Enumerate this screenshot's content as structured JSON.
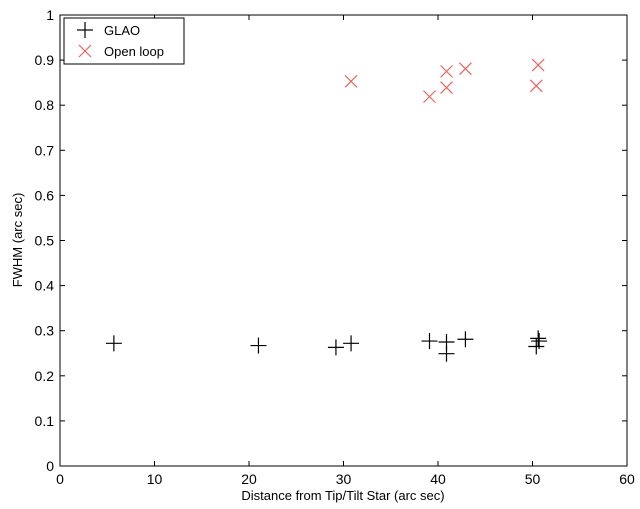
{
  "chart_data": {
    "type": "scatter",
    "title": "",
    "xlabel": "Distance from Tip/Tilt Star (arc sec)",
    "ylabel": "FWHM (arc sec)",
    "xlim": [
      0,
      60
    ],
    "ylim": [
      0,
      1
    ],
    "xticks": [
      "0",
      "10",
      "20",
      "30",
      "40",
      "50",
      "60"
    ],
    "yticks": [
      "0",
      "0.1",
      "0.2",
      "0.3",
      "0.4",
      "0.5",
      "0.6",
      "0.7",
      "0.8",
      "0.9",
      "1"
    ],
    "grid": false,
    "legend_position": "top-left",
    "series": [
      {
        "name": "GLAO",
        "marker": "plus",
        "color": "#000000",
        "points": [
          {
            "x": 5.7,
            "y": 0.272
          },
          {
            "x": 21.0,
            "y": 0.267
          },
          {
            "x": 29.2,
            "y": 0.263
          },
          {
            "x": 30.8,
            "y": 0.272
          },
          {
            "x": 39.1,
            "y": 0.277
          },
          {
            "x": 40.9,
            "y": 0.275
          },
          {
            "x": 40.9,
            "y": 0.249
          },
          {
            "x": 42.9,
            "y": 0.281
          },
          {
            "x": 50.4,
            "y": 0.265
          },
          {
            "x": 50.6,
            "y": 0.283
          },
          {
            "x": 50.7,
            "y": 0.277
          }
        ]
      },
      {
        "name": "Open loop",
        "marker": "x",
        "color": "#e8645f",
        "points": [
          {
            "x": 30.8,
            "y": 0.853
          },
          {
            "x": 39.1,
            "y": 0.819
          },
          {
            "x": 40.9,
            "y": 0.875
          },
          {
            "x": 40.9,
            "y": 0.839
          },
          {
            "x": 42.9,
            "y": 0.881
          },
          {
            "x": 50.4,
            "y": 0.843
          },
          {
            "x": 50.6,
            "y": 0.889
          }
        ]
      }
    ]
  }
}
